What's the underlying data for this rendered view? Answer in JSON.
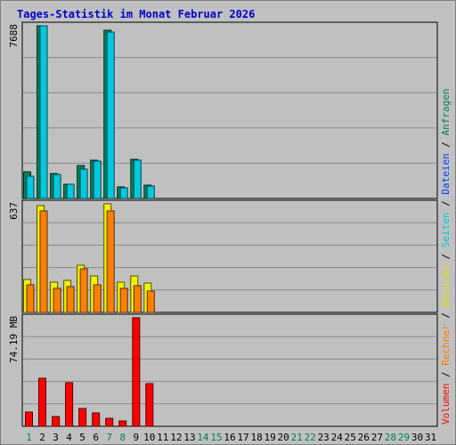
{
  "title": "Tages-Statistik im Monat Februar 2026",
  "colors": {
    "background": "#c0c0c0",
    "title": "#0000cc",
    "anfragen": "#00805c",
    "dateien": "#0040ff",
    "seiten": "#00c8e0",
    "besuche": "#f0f000",
    "rechner": "#ff8000",
    "volumen": "#ff0000",
    "weekday_tick": "#000000",
    "weekend_tick": "#00805c"
  },
  "legend": [
    {
      "text": "Volumen",
      "color": "#ff0000"
    },
    {
      "text": " / ",
      "color": "#000000"
    },
    {
      "text": "Rechner",
      "color": "#ff8000"
    },
    {
      "text": " / ",
      "color": "#000000"
    },
    {
      "text": "Besuche",
      "color": "#e0e000"
    },
    {
      "text": " / ",
      "color": "#000000"
    },
    {
      "text": "Seiten",
      "color": "#00c8e0"
    },
    {
      "text": " / ",
      "color": "#000000"
    },
    {
      "text": "Dateien",
      "color": "#0040ff"
    },
    {
      "text": " / ",
      "color": "#000000"
    },
    {
      "text": "Anfragen",
      "color": "#00805c"
    }
  ],
  "chart_data": [
    {
      "type": "bar",
      "panel": "top",
      "max_label": "7688",
      "ylim": [
        0,
        7688
      ],
      "categories": [
        "1",
        "2",
        "3",
        "4",
        "5",
        "6",
        "7",
        "8",
        "9",
        "10",
        "11",
        "12",
        "13",
        "14",
        "15",
        "16",
        "17",
        "18",
        "19",
        "20",
        "21",
        "22",
        "23",
        "24",
        "25",
        "26",
        "27",
        "28",
        "29",
        "30",
        "31"
      ],
      "weekend_days": [
        "1",
        "7",
        "8",
        "14",
        "15",
        "21",
        "22",
        "28",
        "29"
      ],
      "series": [
        {
          "name": "Anfragen",
          "color": "#00805c",
          "values": [
            1170,
            7688,
            1100,
            650,
            1480,
            1720,
            7500,
            520,
            1750,
            600,
            0,
            0,
            0,
            0,
            0,
            0,
            0,
            0,
            0,
            0,
            0,
            0,
            0,
            0,
            0,
            0,
            0,
            0,
            0,
            0,
            0
          ]
        },
        {
          "name": "Seiten",
          "color": "#00c8e0",
          "values": [
            990,
            7688,
            1080,
            630,
            1300,
            1650,
            7420,
            470,
            1720,
            550,
            0,
            0,
            0,
            0,
            0,
            0,
            0,
            0,
            0,
            0,
            0,
            0,
            0,
            0,
            0,
            0,
            0,
            0,
            0,
            0,
            0
          ]
        }
      ]
    },
    {
      "type": "bar",
      "panel": "middle",
      "max_label": "637",
      "ylim": [
        0,
        637
      ],
      "series": [
        {
          "name": "Besuche",
          "color": "#f0f000",
          "values": [
            195,
            625,
            180,
            190,
            275,
            215,
            637,
            180,
            215,
            170,
            0,
            0,
            0,
            0,
            0,
            0,
            0,
            0,
            0,
            0,
            0,
            0,
            0,
            0,
            0,
            0,
            0,
            0,
            0,
            0,
            0
          ]
        },
        {
          "name": "Rechner",
          "color": "#ff8000",
          "values": [
            160,
            597,
            140,
            150,
            255,
            160,
            597,
            140,
            155,
            125,
            0,
            0,
            0,
            0,
            0,
            0,
            0,
            0,
            0,
            0,
            0,
            0,
            0,
            0,
            0,
            0,
            0,
            0,
            0,
            0,
            0
          ]
        }
      ]
    },
    {
      "type": "bar",
      "panel": "bottom",
      "max_label": "74.19 MB",
      "ylim": [
        0,
        74.19
      ],
      "series": [
        {
          "name": "Volumen",
          "color": "#ff0000",
          "values": [
            9.5,
            32.8,
            6.4,
            29.5,
            12.2,
            8.9,
            5.4,
            3.9,
            74.19,
            29.0,
            0,
            0,
            0,
            0,
            0,
            0,
            0,
            0,
            0,
            0,
            0,
            0,
            0,
            0,
            0,
            0,
            0,
            0,
            0,
            0,
            0
          ]
        }
      ]
    }
  ]
}
